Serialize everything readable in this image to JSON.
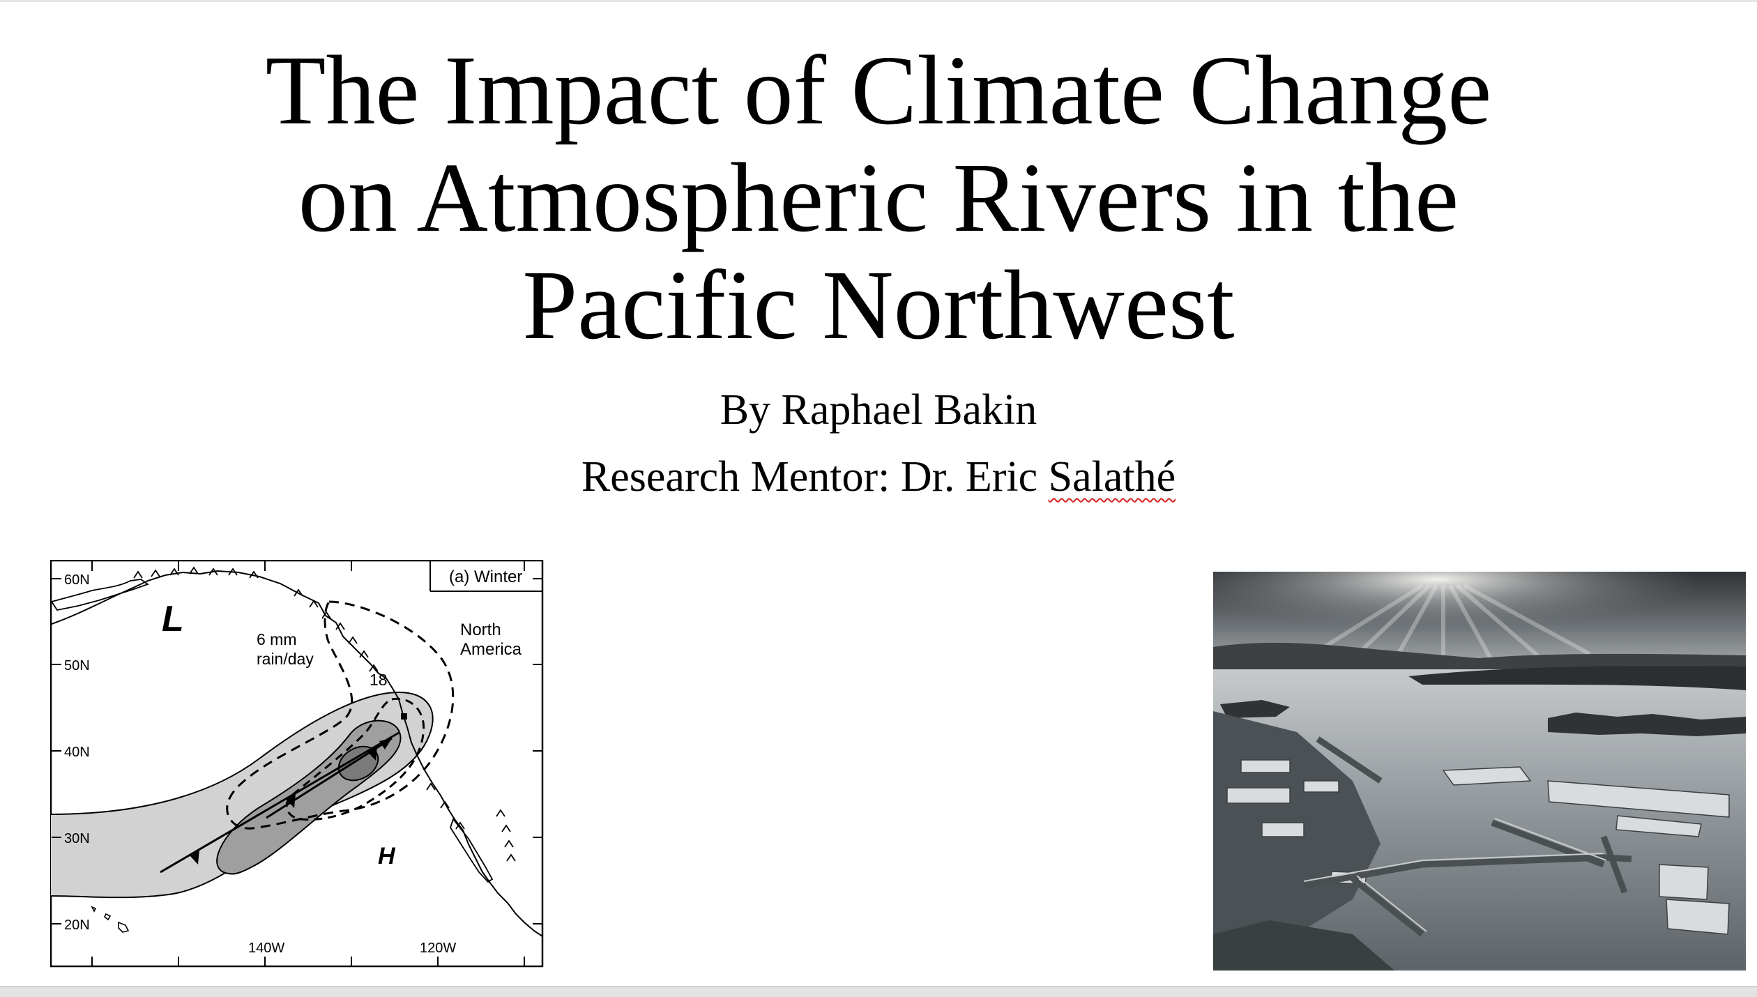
{
  "slide": {
    "title_lines": [
      "The Impact of Climate Change",
      "on Atmospheric Rivers in the",
      "Pacific Northwest"
    ],
    "author": "By Raphael Bakin",
    "mentor_prefix": "Research Mentor: Dr. Eric ",
    "mentor_surname": "Salathé"
  },
  "map_figure": {
    "panel_label": "(a)  Winter",
    "region_label_1": "North",
    "region_label_2": "America",
    "rain_label_1": "6 mm",
    "rain_label_2": "rain/day",
    "contour_value": "18",
    "low_symbol": "L",
    "high_symbol": "H",
    "latitude_labels": [
      "60N",
      "50N",
      "40N",
      "30N",
      "20N"
    ],
    "longitude_labels": [
      "140W",
      "120W"
    ]
  },
  "photo": {
    "icon": "flooded-town-aerial-photo"
  },
  "colors": {
    "text": "#000000",
    "spellcheck_underline": "#d62020",
    "plume_outer": "#d2d2d2",
    "plume_middle": "#9f9f9f",
    "plume_core": "#7a7a7a"
  }
}
